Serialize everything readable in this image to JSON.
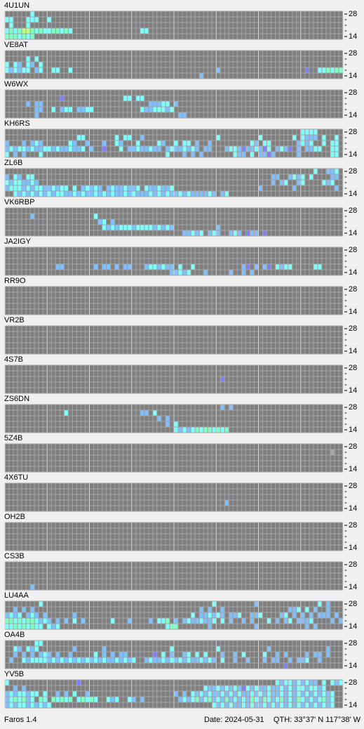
{
  "palette": {
    "c": "#80ffff",
    "b": "#80c0ff",
    "g": "#80ffc0",
    "p": "#8080ff",
    "y": "#c0ff80",
    "w": "#a8a8a8"
  },
  "band_labels": [
    "28",
    "-",
    "-",
    "-",
    "14"
  ],
  "stations": [
    {
      "call": "4U1UN",
      "rows": [
        "......c.",
        "cc...ccc..c",
        ".c...c...",
        "cgcgyygcgccggcgc................cc",
        "gggcgcg"
      ]
    },
    {
      "call": "VE8AT",
      "rows": [
        "",
        ".....c.c",
        "c.cb.cb.c",
        "cbcbcc.bc..cc..c..................................b....................p..ccgcgg",
        "..............................................b"
      ]
    },
    {
      "call": "W6WX",
      "rows": [
        "",
        ".............p..............cc.cc",
        ".....b.bb.........................bbbcc.b",
        ".......bb..c.bcc.bbcc...........cbbcccbc",
        ".......b.................................bb"
      ]
    },
    {
      "call": "KH6RS",
      "rows": [
        "......................................................................cccc",
        ".................cc.......c.cc..b.................c.........c.......c.cbbb.c..c",
        "b...b.bcb......cb..b...b..cb...c....cb..c.cc.b..b.........cb.cc......bcbc..c.cc",
        "bcbccbcbbccbcbbcbbc.b..p...c.bbcbbcbb.bcbbcbcb.bb...bccbpbbcbpc.bcbp.b.bbcc..cc",
        "c.b.b...c.............................c...b.b.b.......cbb.c.bbpb.....b.......cc"
      ]
    },
    {
      "call": "ZL6B",
      "rows": [
        ".........................................................................c..bbc",
        "b.cb.cc........................................................bb..bcbc.c....bb",
        "cbccbbcb.......................................................b.bc..bc....cbc",
        "bcccbcbccbbcbcc.c.bcbcb.bcbbcbbc.cbbcbbc....................b.......b.........b",
        "..cbcbcbcbcbccbbcbcbbcbcbcbbcbcbbbcbcbcbbcbcbbbbcb.bc"
      ]
    },
    {
      "call": "VK6RBP",
      "rows": [
        "",
        "......b..............c",
        "......................bc.b",
        ".......................cbcbcccbccccbcbcb..........b",
        "..........................................bbcbc.bcb..bcb.pbb.p"
      ]
    },
    {
      "call": "JA2IGY",
      "rows": [
        "",
        "",
        "",
        "............bb.......b.bb.b.bb...bccbcbb.c..c...........bp.b.bp.cbcc.....cc",
        ".......................................bbcbc...b.....b..b.b"
      ]
    },
    {
      "call": "RR9O",
      "rows": [
        "",
        "",
        "",
        "",
        ""
      ]
    },
    {
      "call": "VR2B",
      "rows": [
        "",
        "",
        "",
        "",
        ""
      ]
    },
    {
      "call": "4S7B",
      "rows": [
        "",
        "",
        "...................................................p",
        "",
        ""
      ]
    },
    {
      "call": "ZS6DN",
      "rows": [
        "...................................................b.b",
        "..............c.................bb.c",
        "....................................b.b",
        "......................................b.c",
        "........................................cbcbcgcggcgcg"
      ]
    },
    {
      "call": "5Z4B",
      "rows": [
        "",
        ".............................................................................w",
        "",
        "",
        ""
      ]
    },
    {
      "call": "4X6TU",
      "rows": [
        "",
        "",
        "",
        "....................................................b",
        ""
      ]
    },
    {
      "call": "OH2B",
      "rows": [
        "",
        "",
        "",
        "",
        ""
      ]
    },
    {
      "call": "CS3B",
      "rows": [
        "",
        "",
        "",
        "",
        "......b"
      ]
    },
    {
      "call": "LU4AA",
      "rows": [
        "........c........................................c.........b..............c.b",
        "..b.b.b.......................................b.b..b...............bbc.c.b..b",
        "bcbc.bcb.b......b...........................c.bbcbcb.bbc..bbc....bc.b.b.b.bbb.b",
        "ggcgcggcbcb.b.b.c.b......c...b....b.ccg.b.bcbbcbbc.c.b..b.b...c.b.bc.bbbc....b.b",
        "ccgcgcgcc.cbc.........................cgg.......b..........b...........b.b"
      ]
    },
    {
      "call": "OA4B",
      "rows": [
        ".......cc",
        "..cb.cbc........b......b...............c..........c...........b.............b",
        "..b.b.b.bcb.b..b.....c.b.b.bb......p.c.b..bc.c.c...b..b.c....c..b.b....b.bb.b",
        ".b..cbccccbcbcbcbcbcbcbcbbcbcbc..bcbbcbcbcbcbbcbcb.c..b..b...b.bb..b.bbc..b",
        "..................................................................p"
      ]
    },
    {
      "call": "YV5B",
      "rows": [
        "c................p..............................................cbccbcbcbb.c.cbcb",
        "..b.b..........................................cbbcbcbcbpcbcbbcbbcbcbccbccbc",
        "bcbccbcc.c..b.b.c..b....................b.b.cbcbcbbcbcbcbbcbcbcbbcbcbcbcbcbcbc",
        "bcgcgbc.gc.gcgcg.cgcgc..cbc..cb.b........bcbcgbcgbcbgbcbcbgcbgcbcgbcbgcbcbcgbc",
        "bcbccbcbcbc......................................cbcbcbbcbcbbcbcbcbcbcbcbcbcbc"
      ]
    }
  ],
  "footer": {
    "app": "Faros 1.4",
    "date": "Date: 2024-05-31",
    "qth": "QTH: 33°37' N  117°38' W"
  }
}
